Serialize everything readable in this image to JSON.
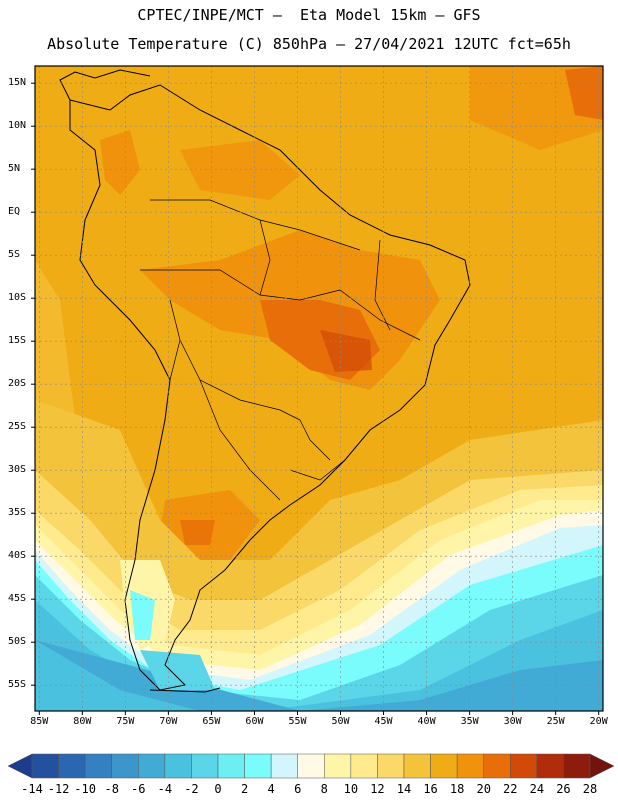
{
  "header": {
    "line1": "CPTEC/INPE/MCT –  Eta Model 15km – GFS",
    "line2": "Absolute Temperature (C) 850hPa – 27/04/2021 12UTC fct=65h"
  },
  "map": {
    "lat_labels": [
      "15N",
      "10N",
      "5N",
      "EQ",
      "5S",
      "10S",
      "15S",
      "20S",
      "25S",
      "30S",
      "35S",
      "40S",
      "45S",
      "50S",
      "55S"
    ],
    "lat_values": [
      15,
      10,
      5,
      0,
      -5,
      -10,
      -15,
      -20,
      -25,
      -30,
      -35,
      -40,
      -45,
      -50,
      -55
    ],
    "lon_labels": [
      "85W",
      "80W",
      "75W",
      "70W",
      "65W",
      "60W",
      "55W",
      "50W",
      "45W",
      "40W",
      "35W",
      "30W",
      "25W",
      "20W"
    ],
    "lon_values": [
      -85,
      -80,
      -75,
      -70,
      -65,
      -60,
      -55,
      -50,
      -45,
      -40,
      -35,
      -30,
      -25,
      -20
    ],
    "lon_range": [
      -85.5,
      -19.5
    ],
    "lat_range": [
      -58,
      17
    ]
  },
  "colorbar": {
    "labels": [
      "-14",
      "-12",
      "-10",
      "-8",
      "-6",
      "-4",
      "-2",
      "0",
      "2",
      "4",
      "6",
      "8",
      "10",
      "12",
      "14",
      "16",
      "18",
      "20",
      "22",
      "24",
      "26",
      "28"
    ],
    "colors": [
      "#1e3c8c",
      "#23519e",
      "#2b67b0",
      "#3580c0",
      "#3c96cc",
      "#41abd6",
      "#4ac2df",
      "#5ad6e8",
      "#6ceef2",
      "#7afcfc",
      "#d2f6fb",
      "#fff9e6",
      "#fff5a8",
      "#ffea8e",
      "#fbd968",
      "#f4c33c",
      "#f0ac14",
      "#f0920c",
      "#e76e08",
      "#d24a08",
      "#b12c0a",
      "#8e1c0c",
      "#72140e"
    ]
  }
}
